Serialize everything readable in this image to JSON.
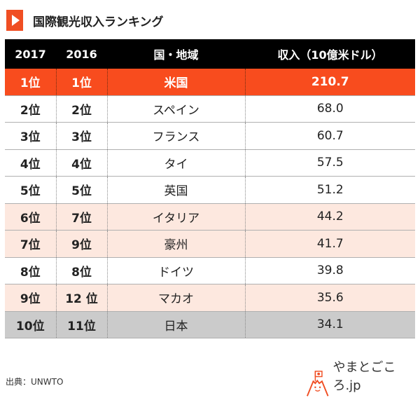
{
  "title": "国際観光収入ランキング",
  "headers": [
    "2017",
    "2016",
    "国・地域",
    "収入（10億米ドル）"
  ],
  "rows": [
    {
      "y2017": "1位",
      "y2016": "1位",
      "country": "米国",
      "value": "210.7"
    },
    {
      "y2017": "2位",
      "y2016": "2位",
      "country": "スペイン",
      "value": "68.0"
    },
    {
      "y2017": "3位",
      "y2016": "3位",
      "country": "フランス",
      "value": "60.7"
    },
    {
      "y2017": "4位",
      "y2016": "4位",
      "country": "タイ",
      "value": "57.5"
    },
    {
      "y2017": "5位",
      "y2016": "5位",
      "country": "英国",
      "value": "51.2"
    },
    {
      "y2017": "6位",
      "y2016": "7位",
      "country": "イタリア",
      "value": "44.2"
    },
    {
      "y2017": "7位",
      "y2016": "9位",
      "country": "豪州",
      "value": "41.7"
    },
    {
      "y2017": "8位",
      "y2016": "8位",
      "country": "ドイツ",
      "value": "39.8"
    },
    {
      "y2017": "9位",
      "y2016": "12 位",
      "country": "マカオ",
      "value": "35.6"
    },
    {
      "y2017": "10位",
      "y2016": "11位",
      "country": "日本",
      "value": "34.1"
    }
  ],
  "source": "出典：UNWTO",
  "logo": "やまとごころ.jp",
  "colors": {
    "accent": "#f84c1e",
    "pink": "#fde8df",
    "gray": "#cbcbcb"
  }
}
